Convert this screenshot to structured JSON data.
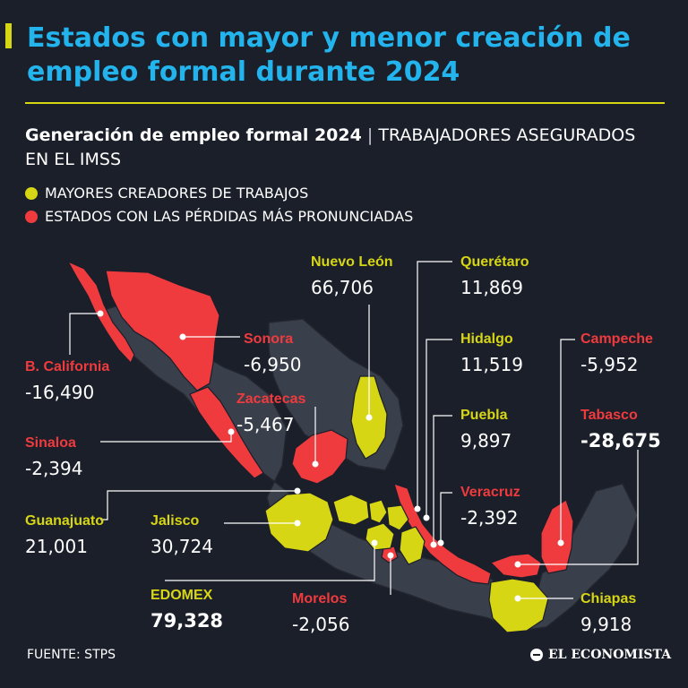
{
  "title": "Estados con mayor y menor creación de empleo formal durante 2024",
  "subtitle": {
    "strong": "Generación de empleo formal 2024",
    "separator": "|",
    "rest": "TRABAJADORES ASEGURADOS EN EL IMSS"
  },
  "legend": {
    "gain": "MAYORES CREADORES DE TRABAJOS",
    "loss": "ESTADOS CON LAS PÉRDIDAS MÁS PRONUNCIADAS",
    "gain_color": "#d7d614",
    "loss_color": "#ef3b3e"
  },
  "colors": {
    "background": "#1b1f2a",
    "title": "#23b4ee",
    "neutral_state": "#3a3f4c",
    "leader_line": "#ffffff"
  },
  "states": {
    "nuevo_leon": {
      "name": "Nuevo León",
      "value": "66,706"
    },
    "queretaro": {
      "name": "Querétaro",
      "value": "11,869"
    },
    "hidalgo": {
      "name": "Hidalgo",
      "value": "11,519"
    },
    "puebla": {
      "name": "Puebla",
      "value": "9,897"
    },
    "veracruz": {
      "name": "Veracruz",
      "value": "-2,392"
    },
    "campeche": {
      "name": "Campeche",
      "value": "-5,952"
    },
    "tabasco": {
      "name": "Tabasco",
      "value": "-28,675"
    },
    "chiapas": {
      "name": "Chiapas",
      "value": "9,918"
    },
    "sonora": {
      "name": "Sonora",
      "value": "-6,950"
    },
    "zacatecas": {
      "name": "Zacatecas",
      "value": "-5,467"
    },
    "b_california": {
      "name": "B. California",
      "value": "-16,490"
    },
    "sinaloa": {
      "name": "Sinaloa",
      "value": "-2,394"
    },
    "guanajuato": {
      "name": "Guanajuato",
      "value": "21,001"
    },
    "jalisco": {
      "name": "Jalisco",
      "value": "30,724"
    },
    "edomex": {
      "name": "EDOMEX",
      "value": "79,328"
    },
    "morelos": {
      "name": "Morelos",
      "value": "-2,056"
    }
  },
  "source": "FUENTE: STPS",
  "brand": "EL ECONOMISTA"
}
